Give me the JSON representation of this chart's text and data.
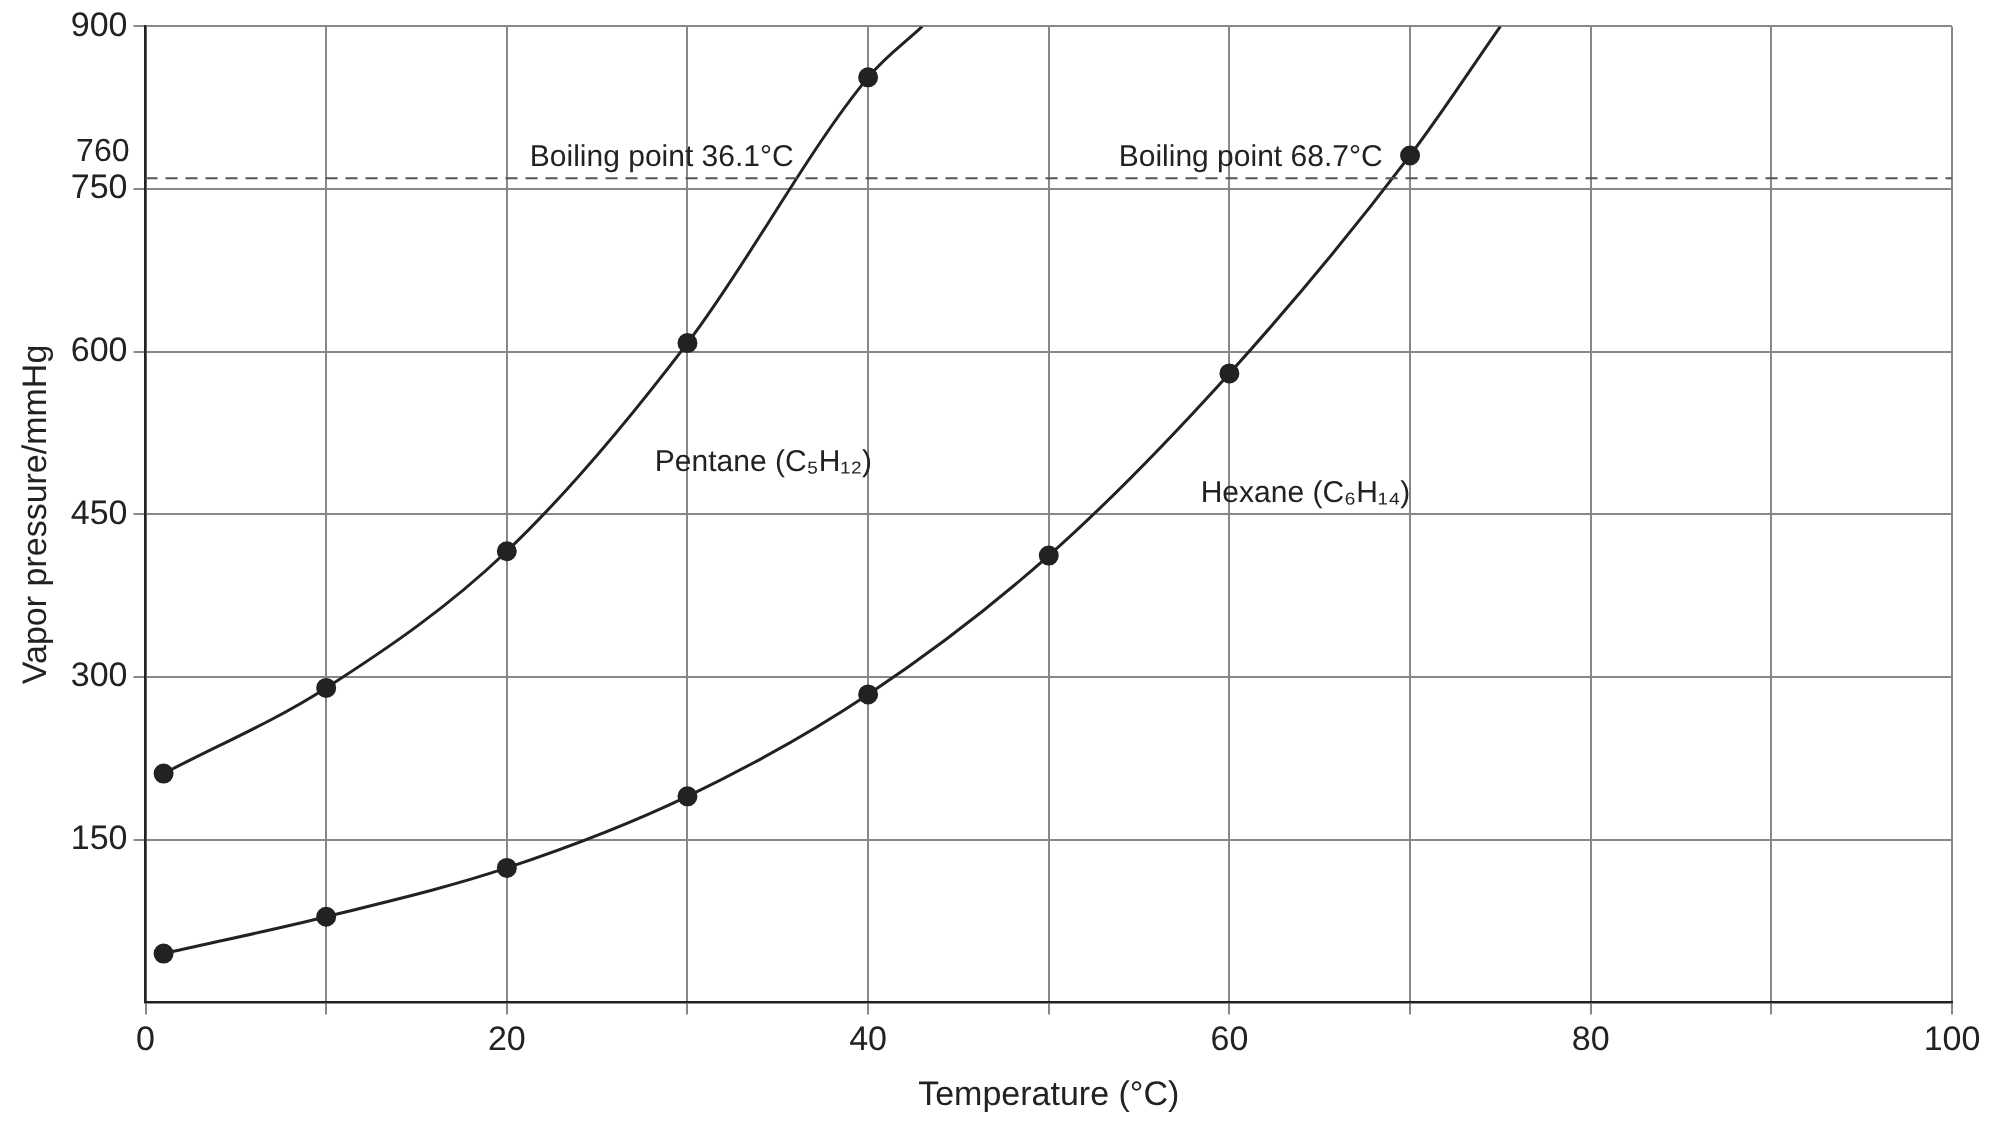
{
  "chart_data": {
    "type": "line",
    "xlabel": "Temperature (°C)",
    "ylabel": "Vapor pressure/mmHg",
    "xlim": [
      0,
      100
    ],
    "ylim": [
      0,
      900
    ],
    "xticks": [
      0,
      {
        "value": 10,
        "label": null
      },
      20,
      {
        "value": 30,
        "label": null
      },
      40,
      {
        "value": 50,
        "label": null
      },
      60,
      {
        "value": 70,
        "label": null
      },
      80,
      {
        "value": 90,
        "label": null
      },
      100
    ],
    "yticks": [
      150,
      300,
      450,
      600,
      750,
      900
    ],
    "grid": true,
    "legend": false,
    "series": [
      {
        "name": "Pentane (C₅H₁₂)",
        "type": "line",
        "marker": "none",
        "color": "#222222",
        "x": [
          1,
          10,
          20,
          30,
          40,
          43
        ],
        "values": [
          211,
          290,
          416,
          608,
          853,
          900
        ]
      },
      {
        "name": "Hexane (C₆H₁₄)",
        "type": "line",
        "marker": "none",
        "color": "#222222",
        "x": [
          1,
          10,
          20,
          30,
          40,
          50,
          60,
          70,
          75
        ],
        "values": [
          45,
          79,
          124,
          190,
          284,
          412,
          580,
          781,
          900
        ]
      },
      {
        "type": "scatter",
        "marker": "circle",
        "color": "#222222",
        "x": [
          1,
          10,
          20,
          30,
          40
        ],
        "values": [
          211,
          290,
          416,
          608,
          853
        ]
      },
      {
        "type": "scatter",
        "marker": "circle",
        "color": "#222222",
        "x": [
          1,
          10,
          20,
          30,
          40,
          50,
          60,
          70
        ],
        "values": [
          45,
          79,
          124,
          190,
          284,
          412,
          580,
          781
        ]
      }
    ],
    "ref_lines": [
      {
        "axis": "y",
        "value": 760,
        "label": "760",
        "line_style": "dashed",
        "color": "#555555"
      }
    ],
    "annotations": [
      {
        "text": "Boiling point 36.1°C",
        "x": 36.1,
        "y": 760
      },
      {
        "text": "Boiling point 68.7°C",
        "x": 68.7,
        "y": 760
      }
    ]
  }
}
